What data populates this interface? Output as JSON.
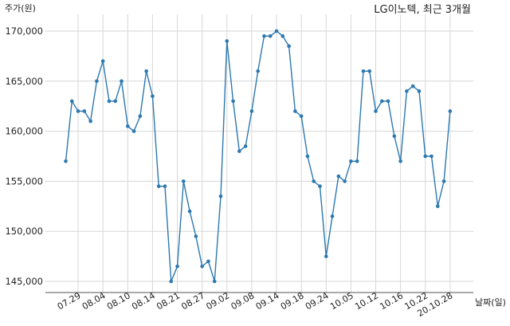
{
  "chart_data": {
    "type": "line",
    "title": "LG이노텍, 최근 3개월",
    "ylabel": "주가(원)",
    "xlabel": "날짜(일)",
    "ylim": [
      144000,
      171000
    ],
    "yticks": [
      145000,
      150000,
      155000,
      160000,
      165000,
      170000
    ],
    "ytick_labels": [
      "145,000",
      "150,000",
      "155,000",
      "160,000",
      "165,000",
      "170,000"
    ],
    "xtick_labels": [
      "07.29",
      "08.04",
      "08.10",
      "08.14",
      "08.21",
      "08.27",
      "09.02",
      "09.08",
      "09.14",
      "09.18",
      "09.24",
      "10.05",
      "10.12",
      "10.16",
      "10.22",
      "20.10.28"
    ],
    "xtick_index": [
      2,
      6,
      10,
      14,
      18,
      22,
      26,
      30,
      34,
      38,
      42,
      46,
      50,
      54,
      58,
      62
    ],
    "grid": true,
    "line_color": "#2c78b0",
    "series": [
      {
        "values": [
          157000,
          163000,
          162000,
          162000,
          161000,
          165000,
          167000,
          163000,
          163000,
          165000,
          160500,
          160000,
          161500,
          166000,
          163500,
          154500,
          154500,
          145000,
          146500,
          155000,
          152000,
          149500,
          146500,
          147000,
          145000,
          153500,
          169000,
          163000,
          158000,
          158500,
          162000,
          166000,
          169500,
          169500,
          170000,
          169500,
          168500,
          162000,
          161500,
          157500,
          155000,
          154500,
          147500,
          151500,
          155500,
          155000,
          157000,
          157000,
          166000,
          166000,
          162000,
          163000,
          163000,
          159500,
          157000,
          164000,
          164500,
          164000,
          157500,
          157500,
          152500,
          155000,
          162000
        ]
      }
    ]
  }
}
